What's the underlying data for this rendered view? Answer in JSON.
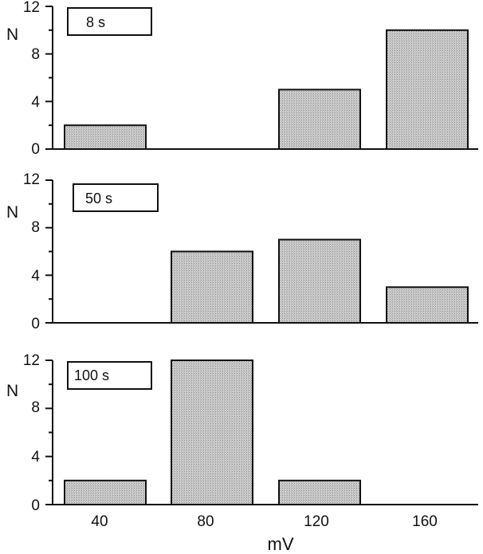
{
  "chart_data": [
    {
      "type": "bar",
      "legend_label": "8 s",
      "ylabel": "N",
      "categories": [
        "40",
        "80",
        "120",
        "160"
      ],
      "values": [
        2,
        0,
        5,
        10
      ],
      "yticks": [
        "0",
        "4",
        "8",
        "12"
      ],
      "ylim": [
        0,
        12
      ]
    },
    {
      "type": "bar",
      "legend_label": "50 s",
      "ylabel": "N",
      "categories": [
        "40",
        "80",
        "120",
        "160"
      ],
      "values": [
        0,
        6,
        7,
        3
      ],
      "yticks": [
        "0",
        "4",
        "8",
        "12"
      ],
      "ylim": [
        0,
        12
      ]
    },
    {
      "type": "bar",
      "legend_label": "100 s",
      "ylabel": "N",
      "categories": [
        "40",
        "80",
        "120",
        "160"
      ],
      "values": [
        2,
        12,
        2,
        0
      ],
      "yticks": [
        "0",
        "4",
        "8",
        "12"
      ],
      "ylim": [
        0,
        12
      ]
    }
  ],
  "xaxis": {
    "tick_labels": [
      "40",
      "80",
      "120",
      "160"
    ],
    "title": "mV"
  },
  "colors": {
    "bar_fill": "#c9c9c9",
    "bar_stroke": "#111111",
    "axis": "#111111"
  }
}
